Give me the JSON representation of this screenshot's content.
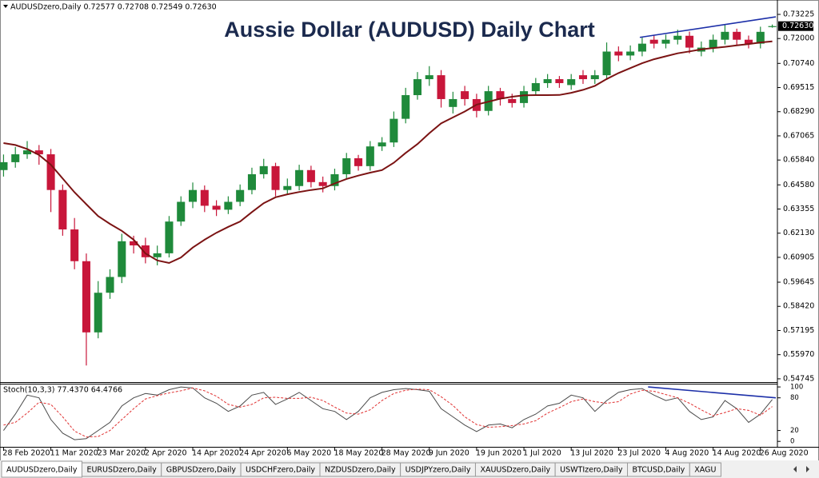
{
  "chart_data": [
    {
      "type": "candlestick",
      "title": "Aussie Dollar (AUDUSD) Daily Chart",
      "header": "AUDUSDzero,Daily  0.72577 0.72708 0.72549 0.72630",
      "last_price": {
        "value": 0.7263,
        "label": "0.72630"
      },
      "up_color": "#1f8a3b",
      "down_color": "#c8163a",
      "xlim": [
        -0.3,
        65.3
      ],
      "xticks": [
        {
          "value": 0,
          "label": "28 Feb 2020"
        },
        {
          "value": 4,
          "label": "11 Mar 2020"
        },
        {
          "value": 8,
          "label": "23 Mar 2020"
        },
        {
          "value": 12,
          "label": "2 Apr 2020"
        },
        {
          "value": 16,
          "label": "14 Apr 2020"
        },
        {
          "value": 20,
          "label": "24 Apr 2020"
        },
        {
          "value": 24,
          "label": "6 May 2020"
        },
        {
          "value": 28,
          "label": "18 May 2020"
        },
        {
          "value": 32,
          "label": "28 May 2020"
        },
        {
          "value": 36,
          "label": "9 Jun 2020"
        },
        {
          "value": 40,
          "label": "19 Jun 2020"
        },
        {
          "value": 44,
          "label": "1 Jul 2020"
        },
        {
          "value": 48,
          "label": "13 Jul 2020"
        },
        {
          "value": 52,
          "label": "23 Jul 2020"
        },
        {
          "value": 56,
          "label": "4 Aug 2020"
        },
        {
          "value": 60,
          "label": "14 Aug 2020"
        },
        {
          "value": 64,
          "label": "26 Aug 2020"
        }
      ],
      "ylim": [
        0.5462,
        0.7363
      ],
      "yticks": [
        0.73225,
        {
          "value": 0.72,
          "label": "0.72000"
        },
        {
          "value": 0.7074,
          "label": "0.70740"
        },
        0.69515,
        {
          "value": 0.6829,
          "label": "0.68290"
        },
        0.67065,
        {
          "value": 0.6584,
          "label": "0.65840"
        },
        {
          "value": 0.6458,
          "label": "0.64580"
        },
        0.63355,
        {
          "value": 0.6213,
          "label": "0.62130"
        },
        0.60905,
        0.59645,
        {
          "value": 0.5842,
          "label": "0.58420"
        },
        0.57195,
        {
          "value": 0.5597,
          "label": "0.55970"
        },
        0.54745
      ],
      "open": [
        0.6533,
        0.6573,
        0.6613,
        0.6633,
        0.6613,
        0.6432,
        0.6232,
        0.6071,
        0.571,
        0.5911,
        0.5991,
        0.6172,
        0.6151,
        0.6091,
        0.6111,
        0.6272,
        0.6372,
        0.6432,
        0.6352,
        0.6332,
        0.6372,
        0.6432,
        0.6512,
        0.6553,
        0.6432,
        0.6452,
        0.6533,
        0.6472,
        0.6452,
        0.6512,
        0.6593,
        0.6553,
        0.6653,
        0.6673,
        0.6793,
        0.6913,
        0.6994,
        0.7014,
        0.6853,
        0.6933,
        0.6893,
        0.6833,
        0.6933,
        0.6893,
        0.6873,
        0.6933,
        0.6974,
        0.6994,
        0.6964,
        0.7014,
        0.6994,
        0.7014,
        0.7134,
        0.7114,
        0.7134,
        0.7194,
        0.7174,
        0.7194,
        0.7214,
        0.7134,
        0.7154,
        0.7194,
        0.7234,
        0.7194,
        0.7174,
        0.7258
      ],
      "high": [
        0.6612,
        0.665,
        0.668,
        0.666,
        0.664,
        0.646,
        0.629,
        0.611,
        0.597,
        0.603,
        0.621,
        0.62,
        0.619,
        0.615,
        0.63,
        0.64,
        0.647,
        0.6455,
        0.638,
        0.64,
        0.646,
        0.6545,
        0.659,
        0.657,
        0.649,
        0.656,
        0.6555,
        0.65,
        0.654,
        0.662,
        0.661,
        0.668,
        0.67,
        0.683,
        0.695,
        0.703,
        0.706,
        0.704,
        0.693,
        0.696,
        0.692,
        0.696,
        0.695,
        0.692,
        0.696,
        0.7,
        0.702,
        0.701,
        0.702,
        0.704,
        0.704,
        0.718,
        0.716,
        0.7165,
        0.7205,
        0.7215,
        0.722,
        0.7245,
        0.7235,
        0.7185,
        0.722,
        0.727,
        0.725,
        0.7215,
        0.726,
        0.7271
      ],
      "low": [
        0.65,
        0.6545,
        0.659,
        0.656,
        0.632,
        0.62,
        0.603,
        0.5542,
        0.568,
        0.588,
        0.596,
        0.611,
        0.606,
        0.605,
        0.609,
        0.625,
        0.634,
        0.632,
        0.63,
        0.631,
        0.635,
        0.641,
        0.649,
        0.64,
        0.641,
        0.643,
        0.6445,
        0.642,
        0.643,
        0.649,
        0.653,
        0.653,
        0.663,
        0.665,
        0.677,
        0.689,
        0.696,
        0.685,
        0.682,
        0.686,
        0.68,
        0.681,
        0.686,
        0.685,
        0.685,
        0.691,
        0.695,
        0.695,
        0.694,
        0.697,
        0.697,
        0.699,
        0.7085,
        0.709,
        0.711,
        0.715,
        0.715,
        0.717,
        0.7125,
        0.711,
        0.713,
        0.717,
        0.7165,
        0.715,
        0.715,
        0.7255
      ],
      "close": [
        0.6573,
        0.6613,
        0.6633,
        0.6613,
        0.6432,
        0.6232,
        0.6071,
        0.571,
        0.5911,
        0.5991,
        0.6172,
        0.6151,
        0.6091,
        0.6111,
        0.6272,
        0.6372,
        0.6432,
        0.6352,
        0.6332,
        0.6372,
        0.6432,
        0.6512,
        0.6553,
        0.6432,
        0.6452,
        0.6533,
        0.6472,
        0.6452,
        0.6512,
        0.6593,
        0.6553,
        0.6653,
        0.6673,
        0.6793,
        0.6913,
        0.6994,
        0.7014,
        0.6893,
        0.6893,
        0.6893,
        0.6833,
        0.6933,
        0.6893,
        0.6873,
        0.6933,
        0.6974,
        0.6994,
        0.6974,
        0.6994,
        0.6994,
        0.7014,
        0.7134,
        0.7114,
        0.7134,
        0.7174,
        0.7174,
        0.7194,
        0.7214,
        0.7154,
        0.7154,
        0.7194,
        0.7234,
        0.7194,
        0.7174,
        0.7234,
        0.7263
      ],
      "overlays": [
        {
          "color": "#7b1313",
          "values": [
            0.667,
            0.666,
            0.664,
            0.661,
            0.656,
            0.649,
            0.642,
            0.636,
            0.63,
            0.626,
            0.6225,
            0.618,
            0.611,
            0.6075,
            0.6062,
            0.609,
            0.614,
            0.618,
            0.6215,
            0.6245,
            0.6272,
            0.632,
            0.6365,
            0.6395,
            0.641,
            0.6422,
            0.6432,
            0.644,
            0.6465,
            0.6488,
            0.6505,
            0.652,
            0.6533,
            0.657,
            0.662,
            0.6665,
            0.672,
            0.677,
            0.68,
            0.683,
            0.6865,
            0.688,
            0.6895,
            0.6905,
            0.6912,
            0.6913,
            0.6913,
            0.6914,
            0.6925,
            0.694,
            0.696,
            0.6995,
            0.7025,
            0.705,
            0.7075,
            0.7095,
            0.711,
            0.7125,
            0.7135,
            0.7145,
            0.7152,
            0.7158,
            0.7165,
            0.7172,
            0.718,
            0.7186
          ]
        }
      ],
      "trendline": {
        "color": "#1c2fa8",
        "x": [
          53.8,
          65.3
        ],
        "values": [
          0.7206,
          0.731
        ]
      }
    },
    {
      "type": "line",
      "header": "Stoch(10,3,3) 77.4370 64.4766",
      "ylim": [
        -10,
        106
      ],
      "yticks": [
        100,
        80,
        20,
        0
      ],
      "series": [
        {
          "color": "#4a4a4a",
          "dash": false,
          "values": [
            20,
            50,
            85,
            80,
            40,
            15,
            3,
            5,
            20,
            35,
            65,
            80,
            88,
            85,
            95,
            100,
            98,
            80,
            70,
            55,
            65,
            85,
            90,
            68,
            78,
            90,
            75,
            60,
            55,
            40,
            55,
            80,
            90,
            95,
            97,
            95,
            92,
            60,
            45,
            30,
            18,
            30,
            32,
            25,
            40,
            50,
            65,
            70,
            85,
            80,
            55,
            75,
            90,
            95,
            97,
            85,
            75,
            80,
            55,
            40,
            45,
            75,
            60,
            35,
            50,
            77
          ]
        },
        {
          "color": "#e03030",
          "dash": true,
          "values": [
            30,
            35,
            52,
            72,
            68,
            45,
            19,
            8,
            9,
            20,
            40,
            60,
            78,
            84,
            89,
            93,
            98,
            93,
            83,
            68,
            63,
            68,
            80,
            81,
            79,
            79,
            81,
            75,
            63,
            52,
            50,
            58,
            75,
            88,
            94,
            96,
            95,
            82,
            66,
            45,
            31,
            26,
            27,
            29,
            32,
            38,
            52,
            62,
            73,
            78,
            73,
            70,
            73,
            87,
            94,
            92,
            86,
            80,
            70,
            58,
            47,
            53,
            60,
            57,
            48,
            64
          ]
        }
      ],
      "trendline": {
        "color": "#1c2fa8",
        "x": [
          54.5,
          65.3
        ],
        "values": [
          100,
          80
        ]
      }
    }
  ],
  "tabs": [
    "AUDUSDzero,Daily",
    "EURUSDzero,Daily",
    "GBPUSDzero,Daily",
    "USDCHFzero,Daily",
    "NZDUSDzero,Daily",
    "USDJPYzero,Daily",
    "XAUUSDzero,Daily",
    "USWTIzero,Daily",
    "BTCUSD,Daily",
    "XAGU"
  ],
  "active_tab": 0
}
